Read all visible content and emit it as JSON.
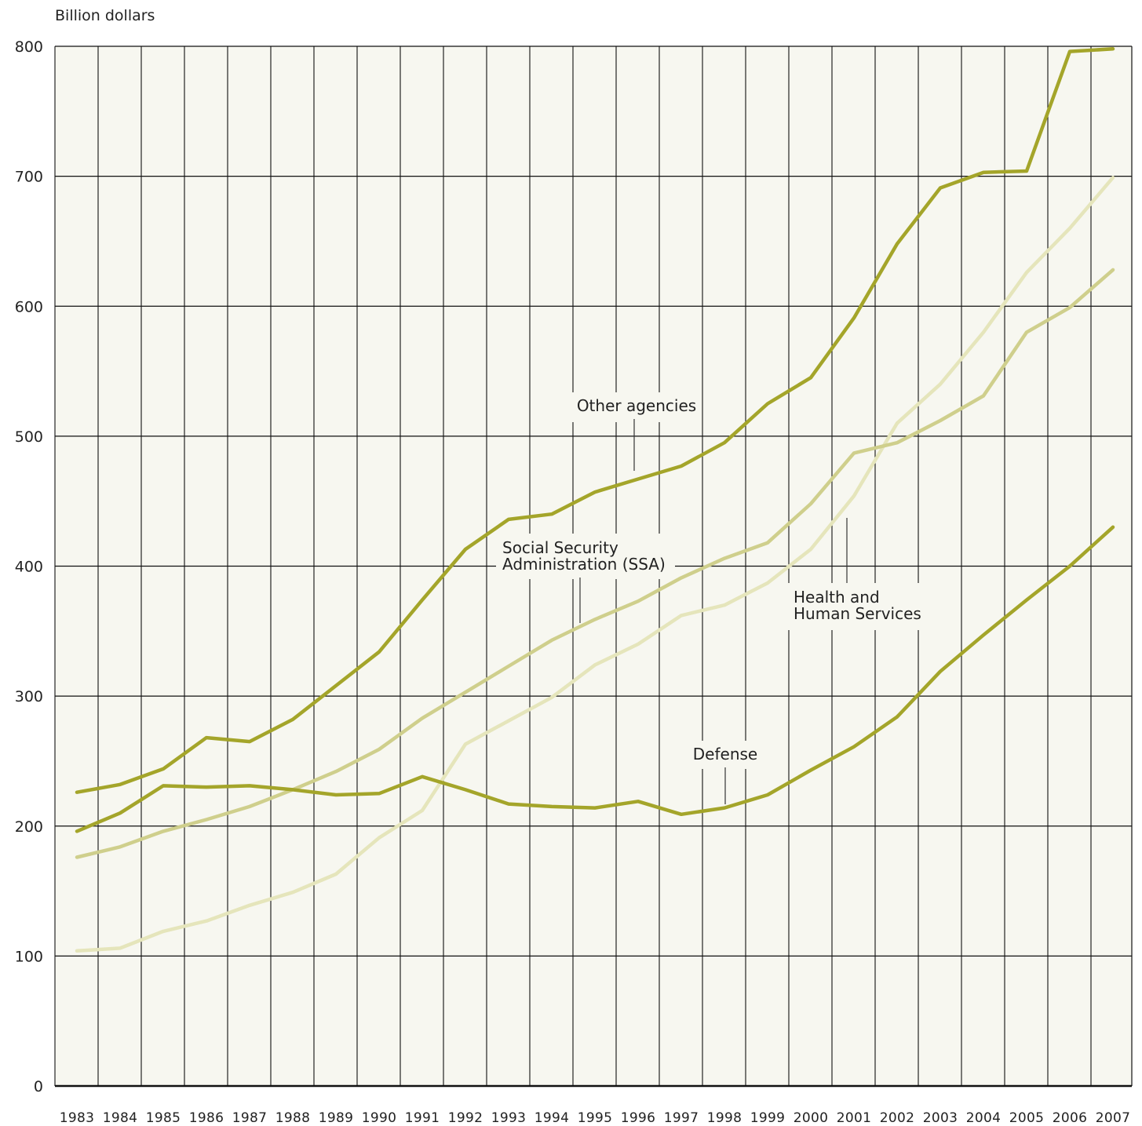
{
  "chart_data": {
    "type": "line",
    "title": "",
    "ylabel": "Billion dollars",
    "xlabel": "",
    "ylim": [
      0,
      800
    ],
    "yticks": [
      0,
      100,
      200,
      300,
      400,
      500,
      600,
      700,
      800
    ],
    "ytick_labels": [
      "0",
      "100",
      "200",
      "300",
      "400",
      "500",
      "600",
      "700",
      "800"
    ],
    "x": [
      "1983",
      "1984",
      "1985",
      "1986",
      "1987",
      "1988",
      "1989",
      "1990",
      "1991",
      "1992",
      "1993",
      "1994",
      "1995",
      "1996",
      "1997",
      "1998",
      "1999",
      "2000",
      "2001",
      "2002",
      "2003",
      "2004",
      "2005",
      "2006",
      "2007"
    ],
    "grid": true,
    "legend": "none",
    "series": [
      {
        "name": "Other agencies",
        "color": "#a4a52a",
        "values": [
          226,
          232,
          244,
          268,
          265,
          282,
          308,
          334,
          374,
          413,
          436,
          440,
          457,
          467,
          477,
          495,
          525,
          545,
          591,
          648,
          691,
          703,
          704,
          796,
          798
        ]
      },
      {
        "name": "Defense",
        "color": "#a4a52a",
        "values": [
          196,
          210,
          231,
          230,
          231,
          228,
          224,
          225,
          238,
          228,
          217,
          215,
          214,
          219,
          209,
          214,
          224,
          243,
          261,
          284,
          319,
          347,
          374,
          400,
          430
        ]
      },
      {
        "name": "Social Security Administration (SSA)",
        "color": "#cfcf8c",
        "values": [
          176,
          184,
          196,
          205,
          215,
          228,
          242,
          259,
          283,
          303,
          323,
          343,
          359,
          373,
          391,
          406,
          418,
          448,
          487,
          495,
          512,
          531,
          580,
          599,
          628
        ]
      },
      {
        "name": "Health and Human Services",
        "color": "#e5e5bb",
        "values": [
          104,
          106,
          119,
          127,
          139,
          149,
          163,
          191,
          212,
          263,
          281,
          299,
          324,
          340,
          362,
          370,
          387,
          413,
          454,
          510,
          540,
          580,
          626,
          660,
          699
        ]
      }
    ],
    "annotations": [
      {
        "text": [
          "Other agencies"
        ],
        "series": "Other agencies"
      },
      {
        "text": [
          "Social Security",
          "Administration (SSA)"
        ],
        "series": "Social Security Administration (SSA)"
      },
      {
        "text": [
          "Health and",
          "Human Services"
        ],
        "series": "Health and Human Services"
      },
      {
        "text": [
          "Defense"
        ],
        "series": "Defense"
      }
    ]
  }
}
